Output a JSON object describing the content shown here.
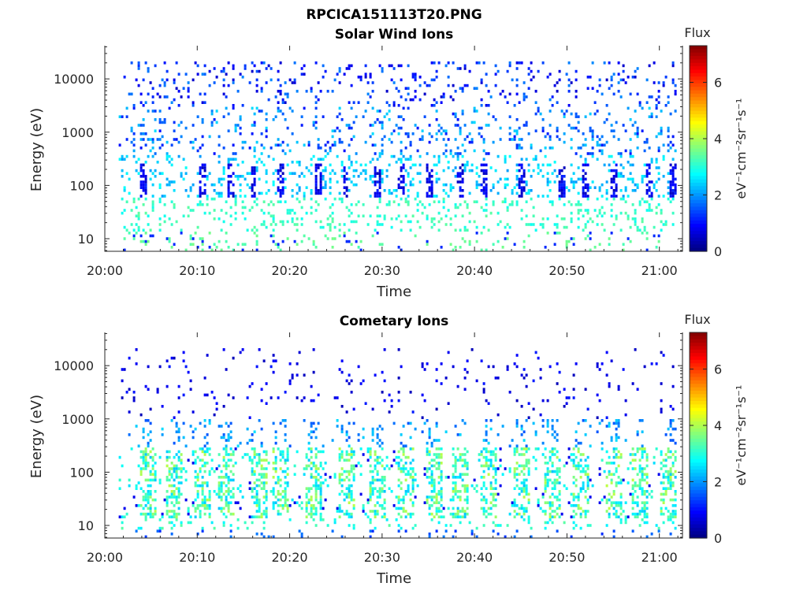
{
  "figure": {
    "title": "RPCICA151113T20.PNG"
  },
  "chart_data": [
    {
      "type": "heatmap",
      "title": "Solar Wind Ions",
      "xlabel": "Time",
      "ylabel": "Energy (eV)",
      "x_ticks": [
        "20:00",
        "20:10",
        "20:20",
        "20:30",
        "20:40",
        "20:50",
        "21:00"
      ],
      "y_ticks": [
        "10",
        "100",
        "1000",
        "10000"
      ],
      "y_scale": "log",
      "ylim": [
        5.8,
        42000
      ],
      "xlim_minutes": [
        0,
        62.5
      ],
      "data_start_minutes": 1.5,
      "data_end_minutes": 62,
      "colorbar": {
        "title": "Flux",
        "label": "eV⁻¹cm⁻²sr⁻¹s⁻¹",
        "ticks": [
          "0",
          "2",
          "4",
          "6"
        ],
        "range": [
          0,
          7.3
        ],
        "colormap": "jet"
      },
      "pattern": {
        "description_values": "sparse background 1e3-1e4 eV flux 0.5-2.5; recurring dark-blue bursts near 100-200 eV; green band below 30 eV flux 3-3.5",
        "burst_minutes": [
          4,
          10.5,
          13.5,
          16,
          19,
          23,
          26,
          29.5,
          32,
          35,
          38.5,
          41,
          45,
          49.5,
          52,
          55,
          59,
          61.5
        ]
      }
    },
    {
      "type": "heatmap",
      "title": "Cometary Ions",
      "xlabel": "Time",
      "ylabel": "Energy (eV)",
      "x_ticks": [
        "20:00",
        "20:10",
        "20:20",
        "20:30",
        "20:40",
        "20:50",
        "21:00"
      ],
      "y_ticks": [
        "10",
        "100",
        "1000",
        "10000"
      ],
      "y_scale": "log",
      "ylim": [
        5.8,
        42000
      ],
      "xlim_minutes": [
        0,
        62.5
      ],
      "data_start_minutes": 1.5,
      "data_end_minutes": 62,
      "colorbar": {
        "title": "Flux",
        "label": "eV⁻¹cm⁻²sr⁻¹s⁻¹",
        "ticks": [
          "0",
          "2",
          "4",
          "6"
        ],
        "range": [
          0,
          7.3
        ],
        "colormap": "jet"
      },
      "pattern": {
        "description_values": "periodic green/yellow dispersed structures 20-400 eV flux 2.5-4; sparse dark-blue points 1e3-1e4 eV; blue blocks below 10 eV",
        "burst_minutes": [
          4.5,
          7.5,
          10.5,
          13,
          16.5,
          19,
          22.5,
          26,
          29.5,
          32.5,
          35.5,
          38.5,
          41.5,
          45,
          48.5,
          51.5,
          55,
          58,
          61
        ]
      }
    }
  ]
}
